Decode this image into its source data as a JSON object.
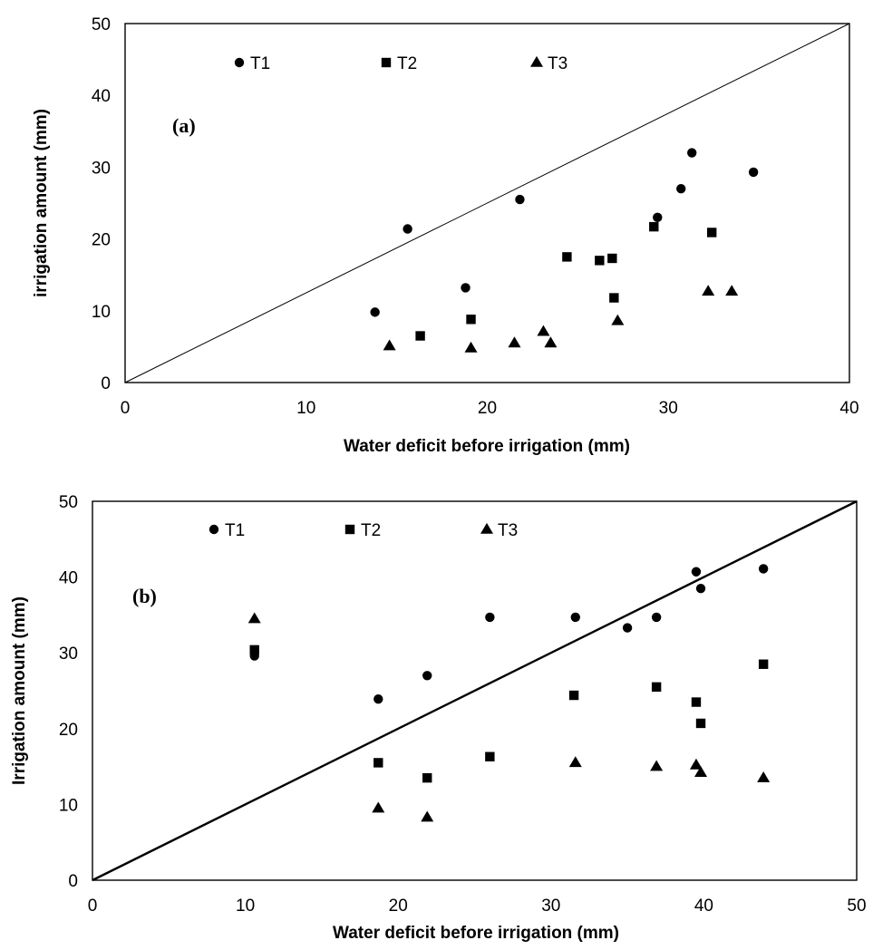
{
  "chart_data": [
    {
      "type": "scatter",
      "panel_label": "(a)",
      "xlabel": "Water deficit before irrigation (mm)",
      "ylabel": "irrigation amount (mm)",
      "xlim": [
        0,
        40
      ],
      "ylim": [
        0,
        50
      ],
      "xticks": [
        0,
        10,
        20,
        30,
        40
      ],
      "yticks": [
        0,
        10,
        20,
        30,
        40,
        50
      ],
      "grid": false,
      "legend_position": "top-inside",
      "reference_line": {
        "from": [
          0,
          0
        ],
        "to": [
          40,
          50
        ]
      },
      "series": [
        {
          "name": "T1",
          "marker": "circle",
          "points": [
            [
              13.8,
              9.8
            ],
            [
              15.6,
              21.4
            ],
            [
              18.8,
              13.2
            ],
            [
              21.8,
              25.5
            ],
            [
              29.4,
              23.0
            ],
            [
              30.7,
              27.0
            ],
            [
              31.3,
              32.0
            ],
            [
              34.7,
              29.3
            ]
          ]
        },
        {
          "name": "T2",
          "marker": "square",
          "points": [
            [
              16.3,
              6.5
            ],
            [
              19.1,
              8.8
            ],
            [
              24.4,
              17.5
            ],
            [
              26.2,
              17.0
            ],
            [
              26.9,
              17.3
            ],
            [
              27.0,
              11.8
            ],
            [
              29.2,
              21.7
            ],
            [
              32.4,
              20.9
            ]
          ]
        },
        {
          "name": "T3",
          "marker": "triangle",
          "points": [
            [
              14.6,
              5.1
            ],
            [
              19.1,
              4.8
            ],
            [
              21.5,
              5.5
            ],
            [
              23.1,
              7.1
            ],
            [
              23.5,
              5.5
            ],
            [
              27.2,
              8.6
            ],
            [
              32.2,
              12.7
            ],
            [
              33.5,
              12.7
            ]
          ]
        }
      ]
    },
    {
      "type": "scatter",
      "panel_label": "(b)",
      "xlabel": "Water deficit before irrigation (mm)",
      "ylabel": "Irrigation amount (mm)",
      "xlim": [
        0,
        50
      ],
      "ylim": [
        0,
        50
      ],
      "xticks": [
        0,
        10,
        20,
        30,
        40,
        50
      ],
      "yticks": [
        0,
        10,
        20,
        30,
        40,
        50
      ],
      "grid": false,
      "legend_position": "top-inside",
      "reference_line": {
        "from": [
          0,
          0
        ],
        "to": [
          50,
          50
        ]
      },
      "series": [
        {
          "name": "T1",
          "marker": "circle",
          "points": [
            [
              10.6,
              29.6
            ],
            [
              18.7,
              23.9
            ],
            [
              21.9,
              27.0
            ],
            [
              26.0,
              34.7
            ],
            [
              31.6,
              34.7
            ],
            [
              35.0,
              33.3
            ],
            [
              36.9,
              34.7
            ],
            [
              39.5,
              40.7
            ],
            [
              39.8,
              38.5
            ],
            [
              43.9,
              41.1
            ]
          ]
        },
        {
          "name": "T2",
          "marker": "square",
          "points": [
            [
              10.6,
              30.4
            ],
            [
              18.7,
              15.5
            ],
            [
              21.9,
              13.5
            ],
            [
              26.0,
              16.3
            ],
            [
              31.5,
              24.4
            ],
            [
              36.9,
              25.5
            ],
            [
              39.5,
              23.5
            ],
            [
              39.8,
              20.7
            ],
            [
              43.9,
              28.5
            ]
          ]
        },
        {
          "name": "T3",
          "marker": "triangle",
          "points": [
            [
              10.6,
              34.5
            ],
            [
              18.7,
              9.5
            ],
            [
              21.9,
              8.3
            ],
            [
              31.6,
              15.5
            ],
            [
              36.9,
              15.0
            ],
            [
              39.5,
              15.2
            ],
            [
              39.8,
              14.2
            ],
            [
              43.9,
              13.5
            ]
          ]
        }
      ]
    }
  ]
}
